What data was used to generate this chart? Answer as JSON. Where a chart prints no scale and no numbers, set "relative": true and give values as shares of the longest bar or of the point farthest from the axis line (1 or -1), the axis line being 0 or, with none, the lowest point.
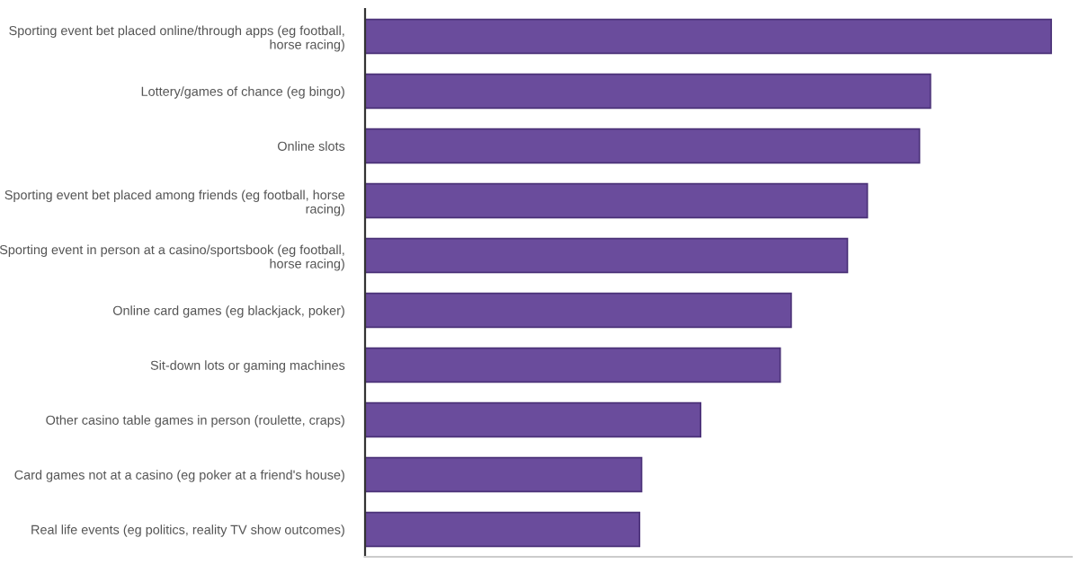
{
  "chart_data": {
    "type": "bar",
    "orientation": "horizontal",
    "relative": true,
    "color": "#6a4c9c",
    "categories": [
      "Sporting event bet placed online/through apps (eg football, horse racing)",
      "Lottery/games of chance (eg bingo)",
      "Online slots",
      "Sporting event bet placed among friends (eg football, horse racing)",
      "Sporting event in person at a casino/sportsbook (eg football, horse racing)",
      "Online card games (eg blackjack, poker)",
      "Sit-down lots or gaming machines",
      "Other casino table games in person (roulette, craps)",
      "Card games not at a casino (eg poker at a friend's house)",
      "Real life events (eg politics, reality TV show outcomes)"
    ],
    "values": [
      1,
      0.824,
      0.808,
      0.732,
      0.703,
      0.621,
      0.605,
      0.489,
      0.403,
      0.4
    ],
    "grid": false,
    "legend": false
  }
}
